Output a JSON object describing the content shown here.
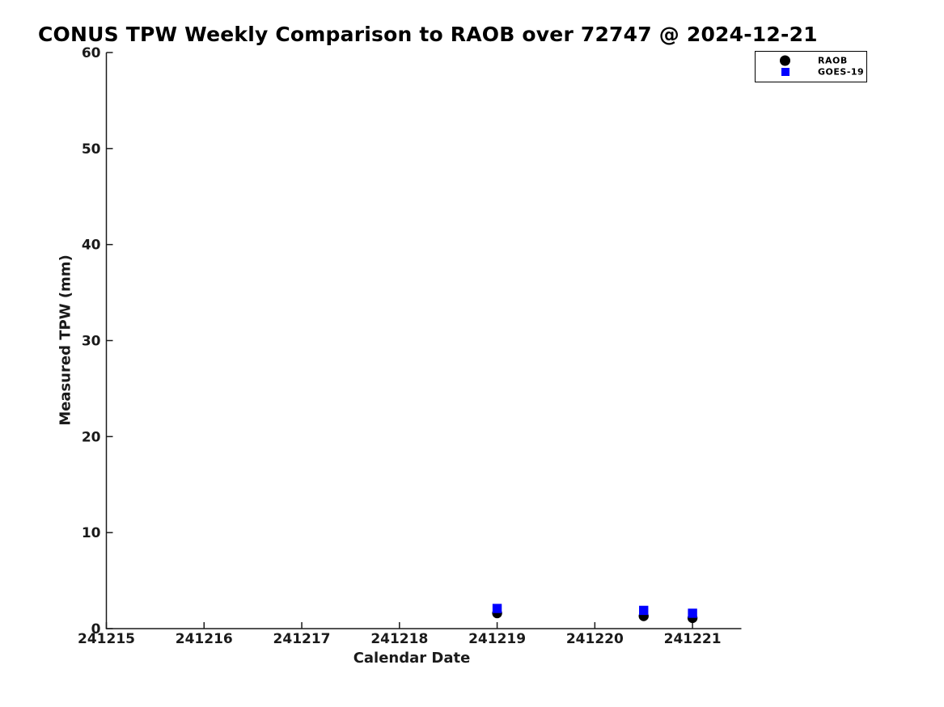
{
  "chart_data": {
    "type": "scatter",
    "title": "CONUS TPW Weekly Comparison to RAOB over 72747 @ 2024-12-21",
    "xlabel": "Calendar Date",
    "ylabel": "Measured TPW (mm)",
    "xlim": [
      241215,
      241221.5
    ],
    "ylim": [
      0,
      60
    ],
    "x_ticks": [
      241215,
      241216,
      241217,
      241218,
      241219,
      241220,
      241221
    ],
    "y_ticks": [
      0,
      10,
      20,
      30,
      40,
      50,
      60
    ],
    "grid": false,
    "legend_position": "top-right",
    "axis_color": "#1a1a1a",
    "series": [
      {
        "name": "RAOB",
        "marker": "circle",
        "color": "#000000",
        "points": [
          {
            "x": 241219.0,
            "y": 1.6
          },
          {
            "x": 241220.5,
            "y": 1.3
          },
          {
            "x": 241221.0,
            "y": 1.1
          }
        ]
      },
      {
        "name": "GOES-19",
        "marker": "square",
        "color": "#0000ff",
        "points": [
          {
            "x": 241219.0,
            "y": 2.1
          },
          {
            "x": 241220.5,
            "y": 1.9
          },
          {
            "x": 241221.0,
            "y": 1.6
          }
        ]
      }
    ]
  }
}
